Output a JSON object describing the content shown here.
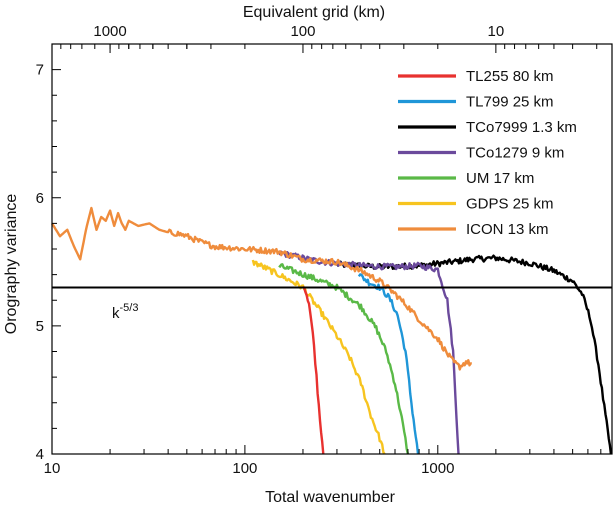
{
  "chart_data": {
    "type": "line",
    "xlabel": "Total wavenumber",
    "ylabel": "Orography variance",
    "top_axis_label": "Equivalent grid (km)",
    "x_scale": "log",
    "xlim": [
      10,
      8000
    ],
    "ylim": [
      4,
      7.2
    ],
    "x_ticks": [
      10,
      100,
      1000
    ],
    "x_tick_labels": [
      "10",
      "100",
      "1000"
    ],
    "y_ticks": [
      4,
      5,
      6,
      7
    ],
    "y_tick_labels": [
      "4",
      "5",
      "6",
      "7"
    ],
    "top_ticks_km": [
      1000,
      100,
      10
    ],
    "top_tick_labels": [
      "1000",
      "100",
      "10"
    ],
    "reference_line": {
      "label_base": "k",
      "label_exponent": "-5/3",
      "y": 5.3
    },
    "grid": false,
    "legend_position": "top-right",
    "series": [
      {
        "name": "TL255 80 km",
        "color": "#e8312f",
        "x": [
          200,
          215,
          225,
          235,
          245,
          255
        ],
        "y": [
          5.3,
          5.18,
          4.95,
          4.6,
          4.25,
          4.0
        ]
      },
      {
        "name": "TL799 25 km",
        "color": "#1f96d8",
        "x": [
          390,
          440,
          500,
          560,
          620,
          680,
          730,
          790
        ],
        "y": [
          5.4,
          5.34,
          5.3,
          5.22,
          5.08,
          4.8,
          4.4,
          4.0
        ]
      },
      {
        "name": "TCo7999 1.3 km",
        "color": "#000000",
        "x": [
          300,
          500,
          800,
          1200,
          1500,
          2000,
          3000,
          4000,
          5000,
          5600,
          6200,
          6800,
          7400,
          7900
        ],
        "y": [
          5.48,
          5.46,
          5.47,
          5.5,
          5.52,
          5.53,
          5.49,
          5.43,
          5.35,
          5.25,
          5.05,
          4.7,
          4.3,
          4.0
        ]
      },
      {
        "name": "TCo1279 9 km",
        "color": "#6b4a9c",
        "x": [
          150,
          250,
          400,
          600,
          800,
          1000,
          1120,
          1200,
          1250,
          1280
        ],
        "y": [
          5.57,
          5.5,
          5.47,
          5.46,
          5.47,
          5.44,
          5.2,
          4.8,
          4.3,
          4.0
        ]
      },
      {
        "name": "UM 17 km",
        "color": "#5ab947",
        "x": [
          150,
          220,
          300,
          400,
          480,
          540,
          600,
          650,
          700
        ],
        "y": [
          5.47,
          5.38,
          5.3,
          5.15,
          4.98,
          4.8,
          4.55,
          4.28,
          4.0
        ]
      },
      {
        "name": "GDPS 25 km",
        "color": "#f7c41f",
        "x": [
          110,
          150,
          200,
          250,
          300,
          350,
          400,
          450,
          500,
          530
        ],
        "y": [
          5.5,
          5.4,
          5.3,
          5.1,
          4.92,
          4.75,
          4.55,
          4.3,
          4.12,
          4.0
        ]
      },
      {
        "name": "ICON 13 km",
        "color": "#ef8c3c",
        "x": [
          10,
          11,
          12,
          13,
          14,
          15,
          16,
          17,
          18,
          19,
          20,
          21,
          22,
          23,
          24,
          25,
          28,
          32,
          36,
          40,
          45,
          50,
          60,
          70,
          100,
          150,
          200,
          300,
          400,
          500,
          600,
          700,
          800,
          900,
          1000,
          1100,
          1200,
          1300,
          1400,
          1500
        ],
        "y": [
          5.8,
          5.7,
          5.75,
          5.62,
          5.52,
          5.75,
          5.92,
          5.75,
          5.85,
          5.82,
          5.9,
          5.78,
          5.88,
          5.8,
          5.75,
          5.82,
          5.78,
          5.8,
          5.75,
          5.73,
          5.72,
          5.7,
          5.65,
          5.62,
          5.6,
          5.58,
          5.52,
          5.5,
          5.43,
          5.35,
          5.25,
          5.15,
          5.05,
          4.97,
          4.9,
          4.8,
          4.72,
          4.68,
          4.72,
          4.7
        ]
      }
    ]
  }
}
